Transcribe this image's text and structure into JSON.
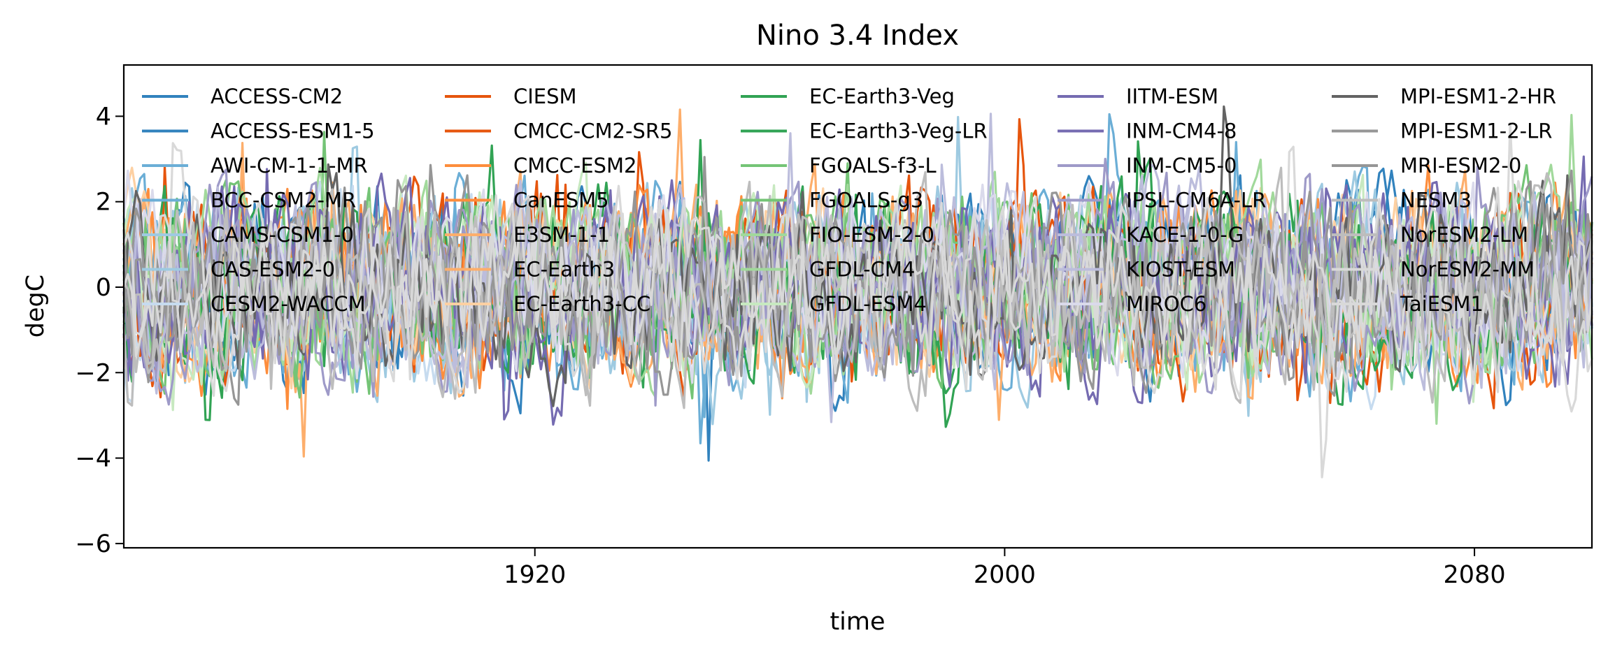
{
  "chart_data": {
    "type": "line",
    "title": "Nino 3.4 Index",
    "xlabel": "time",
    "ylabel": "degC",
    "x_range": [
      "1850-01",
      "2100-12"
    ],
    "xlim_years": [
      1850,
      2100
    ],
    "ylim": [
      -6.1,
      5.2
    ],
    "x_ticks": [
      1920,
      2000,
      2080
    ],
    "y_ticks": [
      4,
      2,
      0,
      -2,
      -4,
      -6
    ],
    "y_tick_labels": [
      "4",
      "2",
      "0",
      "−2",
      "−4",
      "−6"
    ],
    "grid": false,
    "legend_position": "upper center, 5 columns",
    "series_value_range": [
      -5.6,
      4.7
    ],
    "series": [
      {
        "name": "ACCESS-CM2",
        "color": "#3182bd"
      },
      {
        "name": "ACCESS-ESM1-5",
        "color": "#3182bd"
      },
      {
        "name": "AWI-CM-1-1-MR",
        "color": "#6baed6"
      },
      {
        "name": "BCC-CSM2-MR",
        "color": "#6baed6"
      },
      {
        "name": "CAMS-CSM1-0",
        "color": "#9ecae1"
      },
      {
        "name": "CAS-ESM2-0",
        "color": "#9ecae1"
      },
      {
        "name": "CESM2-WACCM",
        "color": "#c6dbef"
      },
      {
        "name": "CIESM",
        "color": "#e6550d"
      },
      {
        "name": "CMCC-CM2-SR5",
        "color": "#e6550d"
      },
      {
        "name": "CMCC-ESM2",
        "color": "#fd8d3c"
      },
      {
        "name": "CanESM5",
        "color": "#fd8d3c"
      },
      {
        "name": "E3SM-1-1",
        "color": "#fdae6b"
      },
      {
        "name": "EC-Earth3",
        "color": "#fdae6b"
      },
      {
        "name": "EC-Earth3-CC",
        "color": "#fdd0a2"
      },
      {
        "name": "EC-Earth3-Veg",
        "color": "#31a354"
      },
      {
        "name": "EC-Earth3-Veg-LR",
        "color": "#31a354"
      },
      {
        "name": "FGOALS-f3-L",
        "color": "#74c476"
      },
      {
        "name": "FGOALS-g3",
        "color": "#74c476"
      },
      {
        "name": "FIO-ESM-2-0",
        "color": "#a1d99b"
      },
      {
        "name": "GFDL-CM4",
        "color": "#a1d99b"
      },
      {
        "name": "GFDL-ESM4",
        "color": "#c7e9c0"
      },
      {
        "name": "IITM-ESM",
        "color": "#756bb1"
      },
      {
        "name": "INM-CM4-8",
        "color": "#756bb1"
      },
      {
        "name": "INM-CM5-0",
        "color": "#9e9ac8"
      },
      {
        "name": "IPSL-CM6A-LR",
        "color": "#9e9ac8"
      },
      {
        "name": "KACE-1-0-G",
        "color": "#bcbddc"
      },
      {
        "name": "KIOST-ESM",
        "color": "#bcbddc"
      },
      {
        "name": "MIROC6",
        "color": "#dadaeb"
      },
      {
        "name": "MPI-ESM1-2-HR",
        "color": "#636363"
      },
      {
        "name": "MPI-ESM1-2-LR",
        "color": "#969696"
      },
      {
        "name": "MRI-ESM2-0",
        "color": "#969696"
      },
      {
        "name": "NESM3",
        "color": "#bdbdbd"
      },
      {
        "name": "NorESM2-LM",
        "color": "#bdbdbd"
      },
      {
        "name": "NorESM2-MM",
        "color": "#d9d9d9"
      },
      {
        "name": "TaiESM1",
        "color": "#d9d9d9"
      }
    ]
  }
}
